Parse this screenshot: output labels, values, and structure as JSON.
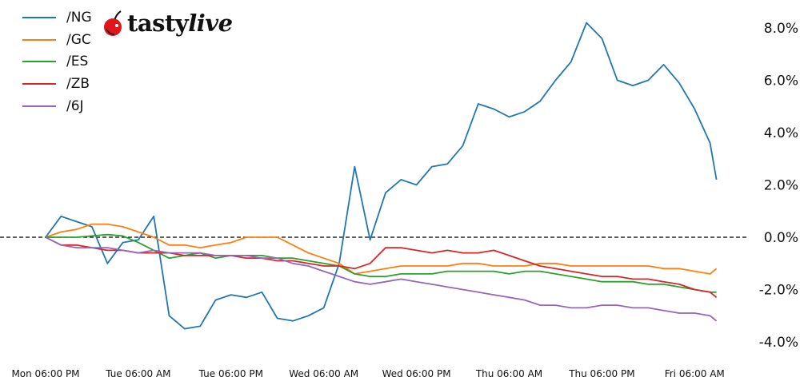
{
  "logo": {
    "text_main": "tasty",
    "text_italic": "live"
  },
  "chart_data": {
    "type": "line",
    "title": "",
    "xlabel": "",
    "ylabel": "",
    "ylim": [
      -4.9,
      8.9
    ],
    "y_ticks": [
      -4.0,
      -2.0,
      0.0,
      2.0,
      4.0,
      6.0,
      8.0
    ],
    "y_tick_labels": [
      "-4.0%",
      "-2.0%",
      "0.0%",
      "2.0%",
      "4.0%",
      "6.0%",
      "8.0%"
    ],
    "y_axis_side": "right",
    "x_ticks": [
      "Mon 18:00",
      "Tue 06:00",
      "Tue 18:00",
      "Wed 06:00",
      "Wed 18:00",
      "Thu 06:00",
      "Thu 18:00",
      "Fri 06:00"
    ],
    "x_tick_labels": [
      "Mon 06:00 PM",
      "Tue 06:00 AM",
      "Tue 06:00 PM",
      "Wed 06:00 AM",
      "Wed 06:00 PM",
      "Thu 06:00 AM",
      "Thu 06:00 PM",
      "Fri 06:00 AM"
    ],
    "reference_line": {
      "y": 0.0,
      "style": "dashed",
      "color": "#000000"
    },
    "grid": false,
    "legend_position": "top-left",
    "x": [
      "Mon 18:00",
      "Mon 20:00",
      "Mon 22:00",
      "Tue 00:00",
      "Tue 02:00",
      "Tue 04:00",
      "Tue 06:00",
      "Tue 08:00",
      "Tue 10:00",
      "Tue 12:00",
      "Tue 14:00",
      "Tue 16:00",
      "Tue 18:00",
      "Tue 20:00",
      "Tue 22:00",
      "Wed 00:00",
      "Wed 02:00",
      "Wed 04:00",
      "Wed 06:00",
      "Wed 08:00",
      "Wed 10:00",
      "Wed 12:00",
      "Wed 14:00",
      "Wed 16:00",
      "Wed 18:00",
      "Wed 20:00",
      "Wed 22:00",
      "Thu 00:00",
      "Thu 02:00",
      "Thu 04:00",
      "Thu 06:00",
      "Thu 08:00",
      "Thu 10:00",
      "Thu 12:00",
      "Thu 14:00",
      "Thu 16:00",
      "Thu 18:00",
      "Thu 20:00",
      "Thu 22:00",
      "Fri 00:00",
      "Fri 02:00",
      "Fri 04:00",
      "Fri 06:00",
      "Fri 08:00",
      "Fri 08:50"
    ],
    "series": [
      {
        "name": "/NG",
        "color": "#1f77b4",
        "values": [
          0,
          0.8,
          0.6,
          0.4,
          -1.0,
          -0.2,
          -0.1,
          0.8,
          -3.0,
          -3.5,
          -3.4,
          -2.4,
          -2.2,
          -2.3,
          -2.1,
          -3.1,
          -3.2,
          -3.0,
          -2.7,
          -1.0,
          2.7,
          -0.1,
          1.7,
          2.2,
          2.0,
          2.7,
          2.8,
          3.5,
          5.1,
          4.9,
          4.6,
          4.8,
          5.2,
          6.0,
          6.7,
          8.2,
          7.6,
          6.0,
          5.8,
          6.0,
          6.6,
          5.9,
          4.9,
          3.6,
          2.2
        ]
      },
      {
        "name": "/GC",
        "color": "#ff7f0e",
        "values": [
          0,
          0.2,
          0.3,
          0.5,
          0.5,
          0.4,
          0.2,
          0.0,
          -0.3,
          -0.3,
          -0.4,
          -0.3,
          -0.2,
          0,
          0,
          0,
          -0.3,
          -0.6,
          -0.8,
          -1.0,
          -1.4,
          -1.3,
          -1.2,
          -1.1,
          -1.1,
          -1.1,
          -1.1,
          -1.0,
          -1.0,
          -1.1,
          -1.1,
          -1.1,
          -1.0,
          -1.0,
          -1.1,
          -1.1,
          -1.1,
          -1.1,
          -1.1,
          -1.1,
          -1.2,
          -1.2,
          -1.3,
          -1.4,
          -1.2
        ]
      },
      {
        "name": "/ES",
        "color": "#2ca02c",
        "values": [
          0,
          0,
          0,
          0.05,
          0.1,
          0.05,
          -0.2,
          -0.5,
          -0.8,
          -0.7,
          -0.6,
          -0.8,
          -0.7,
          -0.7,
          -0.7,
          -0.8,
          -0.8,
          -0.9,
          -1.0,
          -1.1,
          -1.4,
          -1.5,
          -1.5,
          -1.4,
          -1.4,
          -1.4,
          -1.3,
          -1.3,
          -1.3,
          -1.3,
          -1.4,
          -1.3,
          -1.3,
          -1.4,
          -1.5,
          -1.6,
          -1.7,
          -1.7,
          -1.7,
          -1.8,
          -1.8,
          -1.9,
          -2.0,
          -2.1,
          -2.1
        ]
      },
      {
        "name": "/ZB",
        "color": "#d62728",
        "values": [
          0,
          -0.3,
          -0.3,
          -0.4,
          -0.5,
          -0.5,
          -0.6,
          -0.6,
          -0.6,
          -0.7,
          -0.7,
          -0.7,
          -0.7,
          -0.8,
          -0.8,
          -0.9,
          -0.9,
          -1.0,
          -1.1,
          -1.1,
          -1.2,
          -1.0,
          -0.4,
          -0.4,
          -0.5,
          -0.6,
          -0.5,
          -0.6,
          -0.6,
          -0.5,
          -0.7,
          -0.9,
          -1.1,
          -1.2,
          -1.3,
          -1.4,
          -1.5,
          -1.5,
          -1.6,
          -1.6,
          -1.7,
          -1.8,
          -2.0,
          -2.1,
          -2.3
        ]
      },
      {
        "name": "/6J",
        "color": "#9467bd",
        "values": [
          0,
          -0.3,
          -0.4,
          -0.4,
          -0.4,
          -0.5,
          -0.6,
          -0.5,
          -0.6,
          -0.6,
          -0.6,
          -0.7,
          -0.7,
          -0.7,
          -0.8,
          -0.8,
          -1.0,
          -1.1,
          -1.3,
          -1.5,
          -1.7,
          -1.8,
          -1.7,
          -1.6,
          -1.7,
          -1.8,
          -1.9,
          -2.0,
          -2.1,
          -2.2,
          -2.3,
          -2.4,
          -2.6,
          -2.6,
          -2.7,
          -2.7,
          -2.6,
          -2.6,
          -2.7,
          -2.7,
          -2.8,
          -2.9,
          -2.9,
          -3.0,
          -3.2
        ]
      }
    ]
  }
}
